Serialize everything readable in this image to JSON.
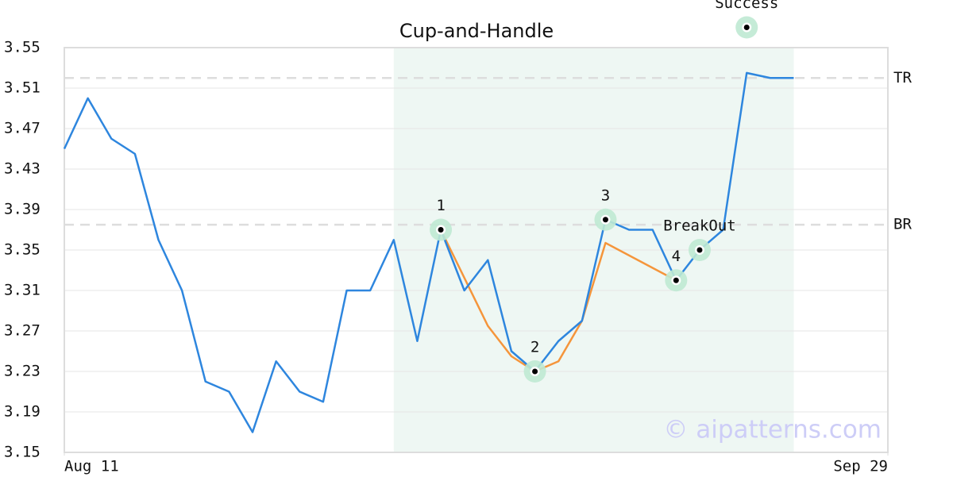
{
  "chart_data": {
    "type": "line",
    "title": "Cup-and-Handle",
    "xlim": [
      0,
      35
    ],
    "xticks": [
      {
        "value": 0,
        "label": "Aug 11"
      },
      {
        "value": 35,
        "label": "Sep 29"
      }
    ],
    "ylim": [
      3.15,
      3.55
    ],
    "yticks": [
      3.15,
      3.19,
      3.23,
      3.27,
      3.31,
      3.35,
      3.39,
      3.43,
      3.47,
      3.51,
      3.55
    ],
    "grid": true,
    "highlight_range": [
      14,
      31
    ],
    "series": [
      {
        "color": "#2e86de",
        "x": [
          0,
          1,
          2,
          3,
          4,
          5,
          6,
          7,
          8,
          9,
          10,
          11,
          12,
          13,
          14,
          15,
          16,
          17,
          18,
          19,
          20,
          21,
          22,
          23,
          24,
          25,
          26,
          27,
          28,
          29,
          30,
          31
        ],
        "values": [
          3.45,
          3.5,
          3.46,
          3.445,
          3.36,
          3.31,
          3.22,
          3.21,
          3.17,
          3.24,
          3.21,
          3.2,
          3.31,
          3.31,
          3.36,
          3.26,
          3.37,
          3.31,
          3.34,
          3.25,
          3.23,
          3.26,
          3.28,
          3.38,
          3.37,
          3.37,
          3.32,
          3.35,
          3.37,
          3.525,
          3.52,
          3.52
        ]
      },
      {
        "color": "#f5953b",
        "x": [
          16,
          18,
          19,
          20,
          21,
          22,
          23,
          26
        ],
        "values": [
          3.37,
          3.275,
          3.245,
          3.23,
          3.24,
          3.28,
          3.357,
          3.32
        ]
      }
    ],
    "hlines": [
      {
        "label": "TR",
        "value": 3.52
      },
      {
        "label": "BR",
        "value": 3.375
      }
    ],
    "annotations": [
      {
        "label": "1",
        "x": 16,
        "y": 3.37
      },
      {
        "label": "2",
        "x": 20,
        "y": 3.23
      },
      {
        "label": "3",
        "x": 23,
        "y": 3.38
      },
      {
        "label": "4",
        "x": 26,
        "y": 3.32
      },
      {
        "label": "BreakOut",
        "x": 27,
        "y": 3.35
      },
      {
        "label": "Success",
        "x": 29,
        "y": 3.57
      }
    ],
    "watermark": "© aipatterns.com"
  }
}
